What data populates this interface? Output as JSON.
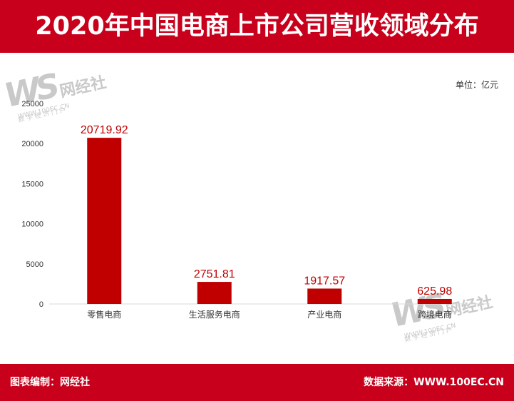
{
  "title": "2020年中国电商上市公司营收领域分布",
  "unit_label": "单位：亿元",
  "footer": {
    "left": "图表编制：网经社",
    "right": "数据来源：WWW.100EC.CN"
  },
  "watermark": {
    "mark": "WS",
    "brand": "网经社",
    "url": "WWW.100EC.CN",
    "tagline": "数 字 经 济 门 户"
  },
  "colors": {
    "header": "#c8001c",
    "bar": "#c00000",
    "label": "#c00000",
    "grid": "#d9d9d9"
  },
  "chart_data": {
    "type": "bar",
    "title": "2020年中国电商上市公司营收领域分布",
    "categories": [
      "零售电商",
      "生活服务电商",
      "产业电商",
      "跨境电商"
    ],
    "values": [
      20719.92,
      2751.81,
      1917.57,
      625.98
    ],
    "value_labels": [
      "20719.92",
      "2751.81",
      "1917.57",
      "625.98"
    ],
    "ylim": [
      0,
      25000
    ],
    "yticks": [
      0,
      5000,
      10000,
      15000,
      20000,
      25000
    ],
    "xlabel": "",
    "ylabel": "",
    "grid": false,
    "legend": "none"
  }
}
